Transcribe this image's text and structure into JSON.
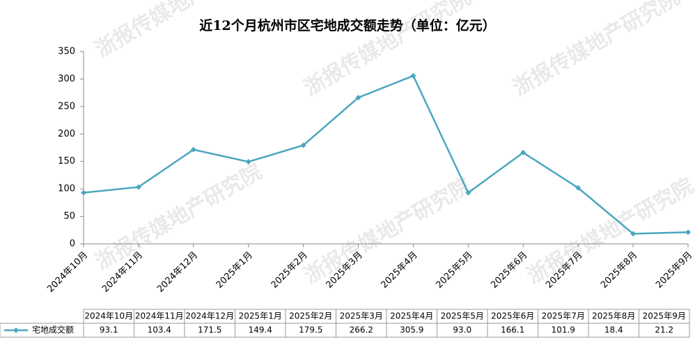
{
  "chart_data": {
    "type": "line",
    "title": "近12个月杭州市区宅地成交额走势（单位：亿元）",
    "watermark": "浙报传媒地产研究院",
    "categories": [
      "2024年10月",
      "2024年11月",
      "2024年12月",
      "2025年1月",
      "2025年2月",
      "2025年3月",
      "2025年4月",
      "2025年5月",
      "2025年6月",
      "2025年7月",
      "2025年8月",
      "2025年9月"
    ],
    "series": [
      {
        "name": "宅地成交额",
        "color": "#4ba6bf",
        "values": [
          93.1,
          103.4,
          171.5,
          149.4,
          179.5,
          266.2,
          305.9,
          93.0,
          166.1,
          101.9,
          18.4,
          21.2
        ],
        "value_labels": [
          "93.1",
          "103.4",
          "171.5",
          "149.4",
          "179.5",
          "266.2",
          "305.9",
          "93.0",
          "166.1",
          "101.9",
          "18.4",
          "21.2"
        ]
      }
    ],
    "ylim": [
      0,
      350
    ],
    "yticks": [
      0,
      50,
      100,
      150,
      200,
      250,
      300,
      350
    ],
    "grid": false
  }
}
